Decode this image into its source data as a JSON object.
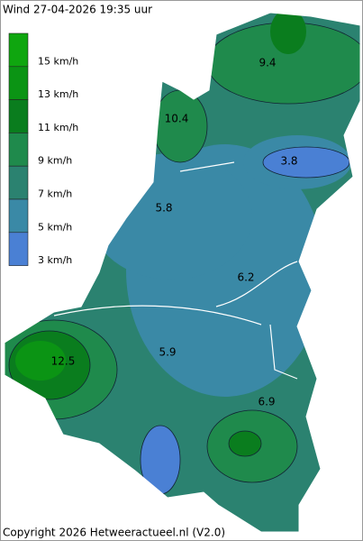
{
  "header": {
    "title": "Wind 27-04-2026  19:35 uur"
  },
  "legend": {
    "items": [
      {
        "label": "15 km/h",
        "color": "#0fa60f"
      },
      {
        "label": "13 km/h",
        "color": "#0b9414"
      },
      {
        "label": "11 km/h",
        "color": "#0a7d1e"
      },
      {
        "label": "9 km/h",
        "color": "#1f8a4c"
      },
      {
        "label": "7 km/h",
        "color": "#2b8270"
      },
      {
        "label": "5 km/h",
        "color": "#3a89a6"
      },
      {
        "label": "3 km/h",
        "color": "#4a80d4"
      }
    ]
  },
  "map": {
    "labels": [
      "9.4",
      "10.4",
      "3.8",
      "5.8",
      "6.2",
      "5.9",
      "12.5",
      "6.9"
    ]
  },
  "footer": {
    "copyright": "Copyright 2026 Hetweeractueel.nl (V2.0)"
  }
}
